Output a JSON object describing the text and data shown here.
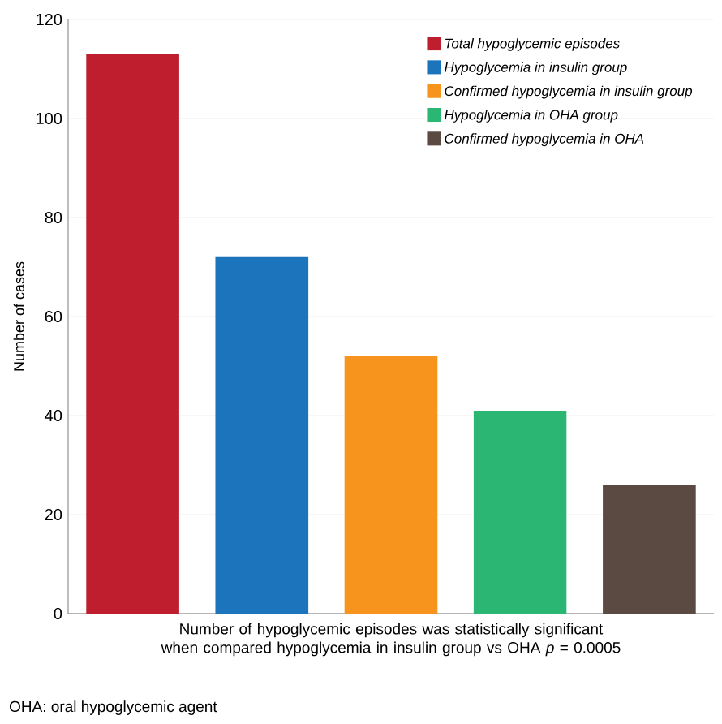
{
  "chart_data": {
    "type": "bar",
    "categories": [
      null,
      null,
      null,
      null,
      null
    ],
    "series": [
      {
        "name": "Total hypoglycemic episodes",
        "color": "#be1e2d",
        "values": [
          113,
          null,
          null,
          null,
          null
        ]
      },
      {
        "name": "Hypoglycemia in insulin group",
        "color": "#1c75bc",
        "values": [
          null,
          72,
          null,
          null,
          null
        ]
      },
      {
        "name": "Confirmed hypoglycemia in insulin group",
        "color": "#f7941d",
        "values": [
          null,
          null,
          52,
          null,
          null
        ]
      },
      {
        "name": "Hypoglycemia in OHA group",
        "color": "#2bb673",
        "values": [
          null,
          null,
          null,
          41,
          null
        ]
      },
      {
        "name": "Confirmed hypoglycemia in OHA",
        "color": "#5b4a42",
        "values": [
          null,
          null,
          null,
          null,
          26
        ]
      }
    ],
    "ylabel": "Number of cases",
    "xlabel": "Number of hypoglycemic episodes was statistically significant when compared hypoglycemia in insulin group vs OHA *p* = 0.0005",
    "annotations": [
      "OHA: oral hypoglycemic agent"
    ],
    "ylim": [
      0,
      120
    ],
    "yticks": [
      0,
      20,
      40,
      60,
      80,
      100,
      120
    ],
    "grid": true,
    "legend": "top right"
  }
}
